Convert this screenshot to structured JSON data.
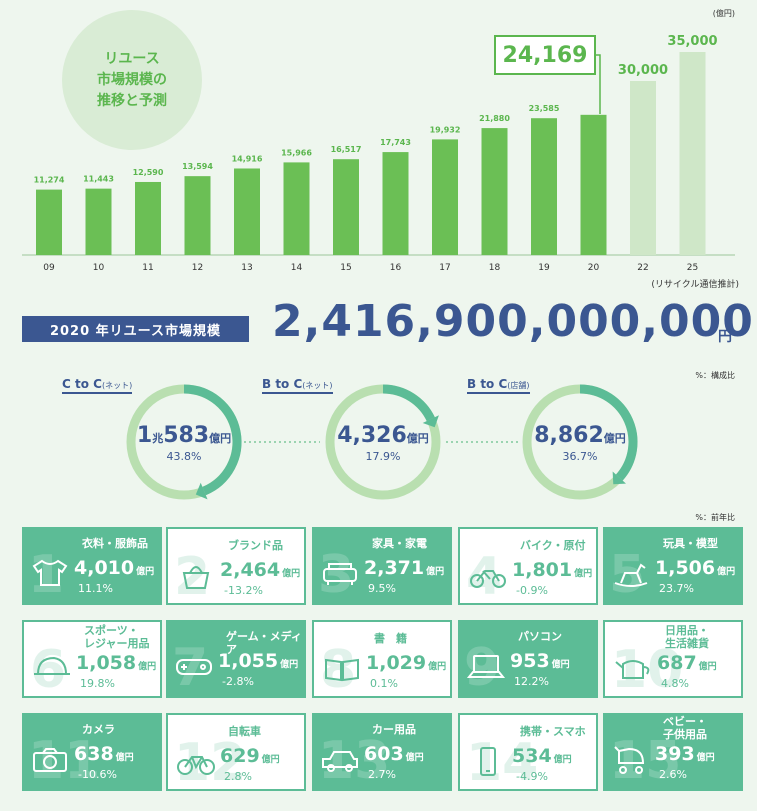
{
  "header": {
    "bubble_lines": [
      "リユース",
      "市場規模の",
      "推移と予測"
    ],
    "unit": "(億円)",
    "highlight_value": "24,169",
    "source": "(リサイクル通信推計)"
  },
  "chart_data": {
    "type": "bar",
    "categories": [
      "09",
      "10",
      "11",
      "12",
      "13",
      "14",
      "15",
      "16",
      "17",
      "18",
      "19",
      "20",
      "22",
      "25"
    ],
    "values": [
      11274,
      11443,
      12590,
      13594,
      14916,
      15966,
      16517,
      17743,
      19932,
      21880,
      23585,
      24169,
      30000,
      35000
    ],
    "value_labels": [
      "11,274",
      "11,443",
      "12,590",
      "13,594",
      "14,916",
      "15,966",
      "16,517",
      "17,743",
      "19,932",
      "21,880",
      "23,585",
      "",
      "30,000",
      "35,000"
    ],
    "forecast_from_index": 12,
    "ylim": [
      0,
      35000
    ],
    "colors": {
      "actual": "#6bbf55",
      "forecast": "#cfe7c8"
    }
  },
  "summary": {
    "banner": "2020 年リユース市場規模",
    "total": "2,416,900,000,000",
    "total_unit": "円"
  },
  "segments_note": "%：構成比",
  "segments": [
    {
      "label": "C to C",
      "sub": "(ネット)",
      "value_main": "1",
      "value_mid": "兆",
      "value_rest": "583",
      "unit": "億円",
      "pct": "43.8%",
      "share": 0.438
    },
    {
      "label": "B to C",
      "sub": "(ネット)",
      "value_main": "",
      "value_mid": "",
      "value_rest": "4,326",
      "unit": "億円",
      "pct": "17.9%",
      "share": 0.179
    },
    {
      "label": "B to C",
      "sub": "(店舗)",
      "value_main": "",
      "value_mid": "",
      "value_rest": "8,862",
      "unit": "億円",
      "pct": "36.7%",
      "share": 0.367
    }
  ],
  "categories_note": "%：前年比",
  "categories": [
    {
      "num": "1",
      "name": "衣料・服飾品",
      "value": "4,010",
      "unit": "億円",
      "change": "11.1%",
      "icon": "shirt-icon"
    },
    {
      "num": "2",
      "name": "ブランド品",
      "value": "2,464",
      "unit": "億円",
      "change": "-13.2%",
      "icon": "handbag-icon"
    },
    {
      "num": "3",
      "name": "家具・家電",
      "value": "2,371",
      "unit": "億円",
      "change": "9.5%",
      "icon": "sofa-icon"
    },
    {
      "num": "4",
      "name": "バイク・原付",
      "value": "1,801",
      "unit": "億円",
      "change": "-0.9%",
      "icon": "motorcycle-icon"
    },
    {
      "num": "5",
      "name": "玩具・模型",
      "value": "1,506",
      "unit": "億円",
      "change": "23.7%",
      "icon": "rocking-horse-icon"
    },
    {
      "num": "6",
      "name": "スポーツ・\nレジャー用品",
      "value": "1,058",
      "unit": "億円",
      "change": "19.8%",
      "icon": "cap-icon"
    },
    {
      "num": "7",
      "name": "ゲーム・メディア",
      "value": "1,055",
      "unit": "億円",
      "change": "-2.8%",
      "icon": "game-console-icon"
    },
    {
      "num": "8",
      "name": "書　籍",
      "value": "1,029",
      "unit": "億円",
      "change": "0.1%",
      "icon": "book-icon"
    },
    {
      "num": "9",
      "name": "パソコン",
      "value": "953",
      "unit": "億円",
      "change": "12.2%",
      "icon": "laptop-icon"
    },
    {
      "num": "10",
      "name": "日用品・\n生活雑貨",
      "value": "687",
      "unit": "億円",
      "change": "4.8%",
      "icon": "teapot-icon"
    },
    {
      "num": "11",
      "name": "カメラ",
      "value": "638",
      "unit": "億円",
      "change": "-10.6%",
      "icon": "camera-icon"
    },
    {
      "num": "12",
      "name": "自転車",
      "value": "629",
      "unit": "億円",
      "change": "2.8%",
      "icon": "bicycle-icon"
    },
    {
      "num": "13",
      "name": "カー用品",
      "value": "603",
      "unit": "億円",
      "change": "2.7%",
      "icon": "car-icon"
    },
    {
      "num": "14",
      "name": "携帯・スマホ",
      "value": "534",
      "unit": "億円",
      "change": "-4.9%",
      "icon": "smartphone-icon"
    },
    {
      "num": "15",
      "name": "ベビー・\n子供用品",
      "value": "393",
      "unit": "億円",
      "change": "2.6%",
      "icon": "stroller-icon"
    }
  ]
}
